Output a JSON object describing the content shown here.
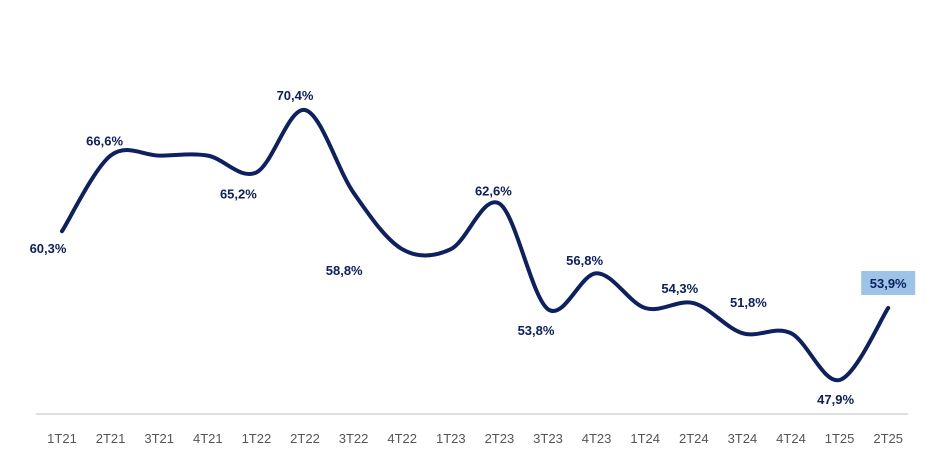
{
  "chart_data": {
    "type": "line",
    "categories": [
      "1T21",
      "2T21",
      "3T21",
      "4T21",
      "1T22",
      "2T22",
      "3T22",
      "4T22",
      "1T23",
      "2T23",
      "3T23",
      "4T23",
      "1T24",
      "2T24",
      "3T24",
      "4T24",
      "1T25",
      "2T25"
    ],
    "values": [
      60.3,
      66.6,
      66.6,
      66.6,
      65.2,
      70.4,
      63.5,
      58.8,
      58.8,
      62.6,
      53.8,
      56.8,
      53.9,
      54.3,
      51.8,
      51.8,
      47.9,
      53.9
    ],
    "labels": [
      {
        "index": 0,
        "text": "60,3%"
      },
      {
        "index": 1,
        "text": "66,6%"
      },
      {
        "index": 4,
        "text": "65,2%"
      },
      {
        "index": 5,
        "text": "70,4%"
      },
      {
        "index": 7,
        "text": "58,8%"
      },
      {
        "index": 9,
        "text": "62,6%"
      },
      {
        "index": 10,
        "text": "53,8%"
      },
      {
        "index": 11,
        "text": "56,8%"
      },
      {
        "index": 13,
        "text": "54,3%"
      },
      {
        "index": 14,
        "text": "51,8%"
      },
      {
        "index": 16,
        "text": "47,9%"
      },
      {
        "index": 17,
        "text": "53,9%",
        "highlight": true
      }
    ],
    "title": "",
    "xlabel": "",
    "ylabel": "",
    "ylim": [
      42,
      76
    ],
    "grid": false,
    "colors": {
      "line": "#0d2060",
      "label": "#0d2060",
      "highlight_bg": "#9dc3e6",
      "axis": "#bfbfbf",
      "tick": "#555555"
    }
  }
}
